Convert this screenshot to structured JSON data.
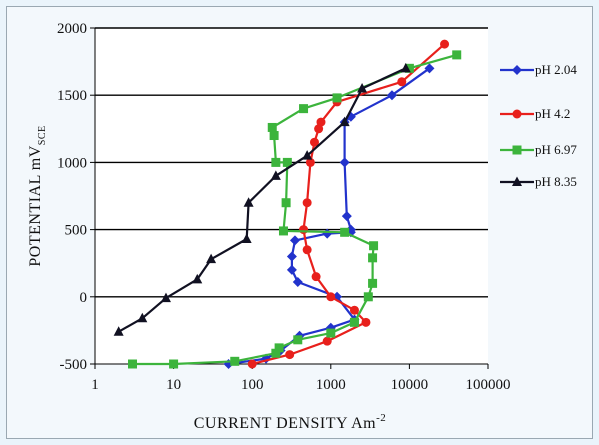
{
  "chart_data": {
    "type": "line",
    "xscale": "log",
    "xlabel": "CURRENT DENSITY Am",
    "xlabel_sup": "-2",
    "ylabel": "POTENTIAL mV",
    "ylabel_sub": "SCE",
    "xlim": [
      1,
      100000
    ],
    "ylim": [
      -500,
      2000
    ],
    "xticks": [
      1,
      10,
      100,
      1000,
      10000,
      100000
    ],
    "xtick_labels": [
      "1",
      "10",
      "100",
      "1000",
      "10000",
      "100000"
    ],
    "yticks": [
      -500,
      0,
      500,
      1000,
      1500,
      2000
    ],
    "ytick_labels": [
      "-500",
      "0",
      "500",
      "1000",
      "1500",
      "2000"
    ],
    "grid": "horizontal",
    "legend": "right",
    "series": [
      {
        "name": "pH 2.04",
        "color": "#2233cc",
        "marker": "diamond",
        "points": [
          [
            50,
            -500
          ],
          [
            150,
            -460
          ],
          [
            230,
            -400
          ],
          [
            400,
            -290
          ],
          [
            1000,
            -230
          ],
          [
            2000,
            -170
          ],
          [
            1200,
            0
          ],
          [
            380,
            110
          ],
          [
            320,
            200
          ],
          [
            320,
            300
          ],
          [
            350,
            420
          ],
          [
            900,
            470
          ],
          [
            1800,
            480
          ],
          [
            1800,
            500
          ],
          [
            1600,
            600
          ],
          [
            1500,
            1000
          ],
          [
            1500,
            1300
          ],
          [
            1800,
            1340
          ],
          [
            6000,
            1500
          ],
          [
            18000,
            1700
          ]
        ]
      },
      {
        "name": "pH 4.2",
        "color": "#e8201c",
        "marker": "circle",
        "points": [
          [
            100,
            -500
          ],
          [
            300,
            -430
          ],
          [
            900,
            -330
          ],
          [
            2800,
            -190
          ],
          [
            2000,
            -100
          ],
          [
            1000,
            0
          ],
          [
            650,
            150
          ],
          [
            500,
            350
          ],
          [
            450,
            500
          ],
          [
            500,
            700
          ],
          [
            550,
            1000
          ],
          [
            620,
            1150
          ],
          [
            700,
            1250
          ],
          [
            750,
            1300
          ],
          [
            1200,
            1450
          ],
          [
            8000,
            1600
          ],
          [
            28000,
            1880
          ]
        ]
      },
      {
        "name": "pH 6.97",
        "color": "#3cb43c",
        "marker": "square",
        "points": [
          [
            3,
            -500
          ],
          [
            10,
            -500
          ],
          [
            60,
            -480
          ],
          [
            200,
            -420
          ],
          [
            220,
            -380
          ],
          [
            380,
            -320
          ],
          [
            1000,
            -270
          ],
          [
            2000,
            -190
          ],
          [
            3000,
            0
          ],
          [
            3400,
            100
          ],
          [
            3400,
            290
          ],
          [
            3500,
            380
          ],
          [
            1500,
            480
          ],
          [
            250,
            490
          ],
          [
            270,
            700
          ],
          [
            280,
            1000
          ],
          [
            200,
            1000
          ],
          [
            190,
            1200
          ],
          [
            180,
            1260
          ],
          [
            450,
            1400
          ],
          [
            1200,
            1480
          ],
          [
            10000,
            1700
          ],
          [
            40000,
            1800
          ]
        ]
      },
      {
        "name": "pH 8.35",
        "color": "#111122",
        "marker": "triangle",
        "points": [
          [
            2,
            -260
          ],
          [
            4,
            -160
          ],
          [
            8,
            -10
          ],
          [
            20,
            130
          ],
          [
            30,
            280
          ],
          [
            85,
            430
          ],
          [
            90,
            700
          ],
          [
            200,
            900
          ],
          [
            500,
            1050
          ],
          [
            1500,
            1300
          ],
          [
            2500,
            1550
          ],
          [
            9000,
            1700
          ]
        ]
      }
    ]
  }
}
